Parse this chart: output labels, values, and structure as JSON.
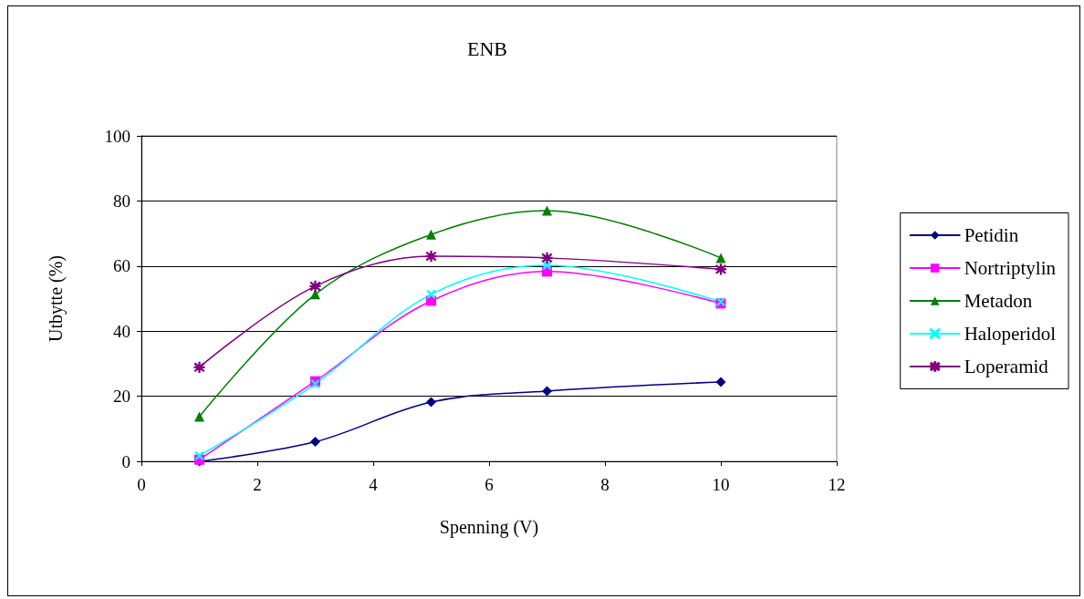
{
  "chart_data": {
    "type": "line",
    "title": "ENB",
    "xlabel": "Spenning (V)",
    "ylabel": "Utbytte (%)",
    "x": [
      1,
      3,
      5,
      7,
      10
    ],
    "series": [
      {
        "name": "Petidin",
        "color": "#000080",
        "marker": "diamond",
        "values": [
          0,
          6,
          18.2,
          21.6,
          24.4
        ]
      },
      {
        "name": "Nortriptylin",
        "color": "#ff00ff",
        "marker": "square",
        "values": [
          0.5,
          24.6,
          49.3,
          58.3,
          48.5
        ]
      },
      {
        "name": "Metadon",
        "color": "#008000",
        "marker": "triangle",
        "values": [
          13.7,
          51.3,
          69.7,
          77,
          62.5
        ]
      },
      {
        "name": "Haloperidol",
        "color": "#00ffff",
        "marker": "cross",
        "values": [
          1.7,
          23.8,
          51.3,
          60.2,
          49
        ]
      },
      {
        "name": "Loperamid",
        "color": "#800080",
        "marker": "star",
        "values": [
          28.9,
          53.8,
          63,
          62.5,
          59
        ]
      }
    ],
    "xlim": [
      0,
      12
    ],
    "xticks": [
      0,
      2,
      4,
      6,
      8,
      10,
      12
    ],
    "ylim": [
      0,
      100
    ],
    "yticks": [
      0,
      20,
      40,
      60,
      80,
      100
    ],
    "grid": "y",
    "legend": "right",
    "line_style": "solid"
  }
}
